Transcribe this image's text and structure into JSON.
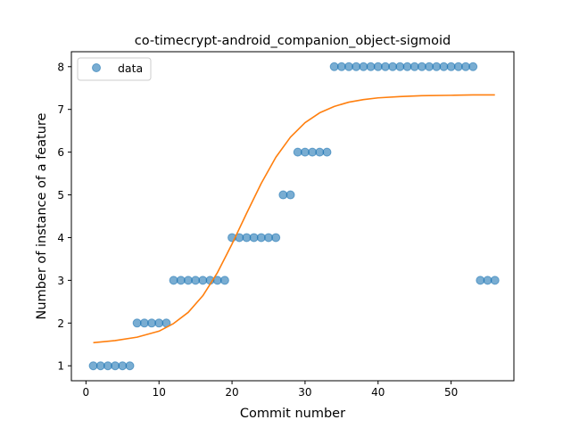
{
  "chart_data": {
    "type": "scatter",
    "title": "co-timecrypt-android_companion_object-sigmoid",
    "xlabel": "Commit number",
    "ylabel": "Number of instance of a feature",
    "xlim": [
      -2,
      58.6
    ],
    "ylim": [
      0.65,
      8.35
    ],
    "x_ticks": [
      0,
      10,
      20,
      30,
      40,
      50
    ],
    "y_ticks": [
      1,
      2,
      3,
      4,
      5,
      6,
      7,
      8
    ],
    "grid": false,
    "legend_position": "top-left",
    "series": [
      {
        "name": "data",
        "kind": "scatter",
        "color": "#1f77b4",
        "x": [
          1,
          2,
          3,
          4,
          5,
          6,
          7,
          8,
          9,
          10,
          11,
          12,
          13,
          14,
          15,
          16,
          17,
          18,
          19,
          20,
          21,
          22,
          23,
          24,
          25,
          26,
          27,
          28,
          29,
          30,
          31,
          32,
          33,
          34,
          35,
          36,
          37,
          38,
          39,
          40,
          41,
          42,
          43,
          44,
          45,
          46,
          47,
          48,
          49,
          50,
          51,
          52,
          53,
          54,
          55,
          56
        ],
        "y": [
          1,
          1,
          1,
          1,
          1,
          1,
          2,
          2,
          2,
          2,
          2,
          3,
          3,
          3,
          3,
          3,
          3,
          3,
          3,
          4,
          4,
          4,
          4,
          4,
          4,
          4,
          5,
          5,
          6,
          6,
          6,
          6,
          6,
          8,
          8,
          8,
          8,
          8,
          8,
          8,
          8,
          8,
          8,
          8,
          8,
          8,
          8,
          8,
          8,
          8,
          8,
          8,
          8,
          3,
          3,
          3
        ]
      },
      {
        "kind": "line",
        "color": "#ff7f0e",
        "x": [
          1,
          4,
          7,
          10,
          12,
          14,
          16,
          18,
          20,
          22,
          24,
          26,
          28,
          30,
          32,
          34,
          36,
          38,
          40,
          43,
          46,
          50,
          53,
          56
        ],
        "y": [
          1.54,
          1.59,
          1.67,
          1.81,
          1.99,
          2.25,
          2.64,
          3.18,
          3.85,
          4.57,
          5.27,
          5.88,
          6.35,
          6.69,
          6.92,
          7.07,
          7.17,
          7.23,
          7.27,
          7.3,
          7.32,
          7.33,
          7.34,
          7.34
        ]
      }
    ]
  }
}
